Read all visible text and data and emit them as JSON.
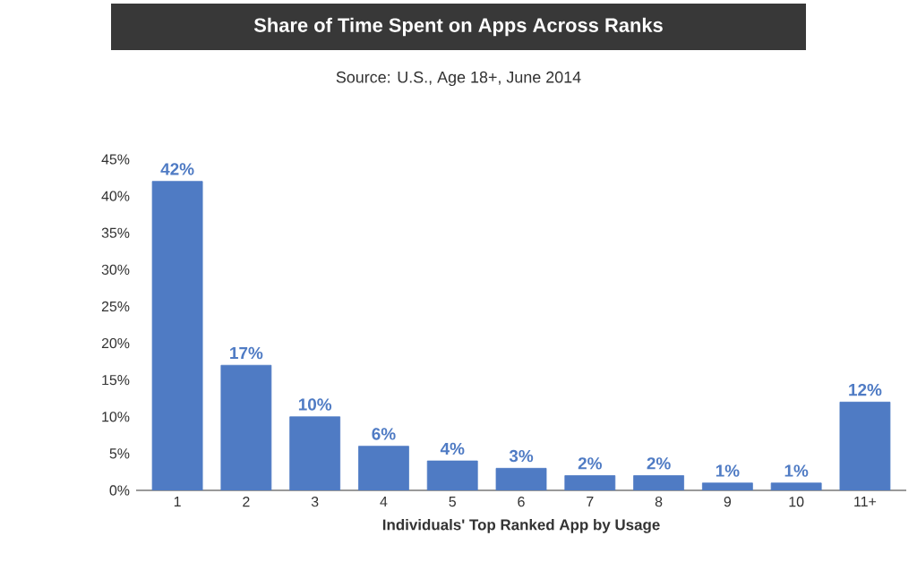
{
  "chart_data": {
    "type": "bar",
    "title": "Share of Time Spent on Apps Across Ranks",
    "subtitle": "Source: U.S., Age 18+, June 2014",
    "xlabel": "Individuals' Top Ranked App by Usage",
    "categories": [
      "1",
      "2",
      "3",
      "4",
      "5",
      "6",
      "7",
      "8",
      "9",
      "10",
      "11+"
    ],
    "values": [
      42,
      17,
      10,
      6,
      4,
      3,
      2,
      2,
      1,
      1,
      12
    ],
    "value_labels": [
      "42%",
      "17%",
      "10%",
      "6%",
      "4%",
      "3%",
      "2%",
      "2%",
      "1%",
      "1%",
      "12%"
    ],
    "color": "#4f7bc4",
    "ylim": [
      0,
      45
    ],
    "yticks": [
      {
        "value": 0,
        "label": "0%"
      },
      {
        "value": 5,
        "label": "5%"
      },
      {
        "value": 10,
        "label": "10%"
      },
      {
        "value": 15,
        "label": "15%"
      },
      {
        "value": 20,
        "label": "20%"
      },
      {
        "value": 25,
        "label": "25%"
      },
      {
        "value": 30,
        "label": "30%"
      },
      {
        "value": 35,
        "label": "35%"
      },
      {
        "value": 40,
        "label": "40%"
      },
      {
        "value": 45,
        "label": "45%"
      }
    ],
    "grid": false
  }
}
